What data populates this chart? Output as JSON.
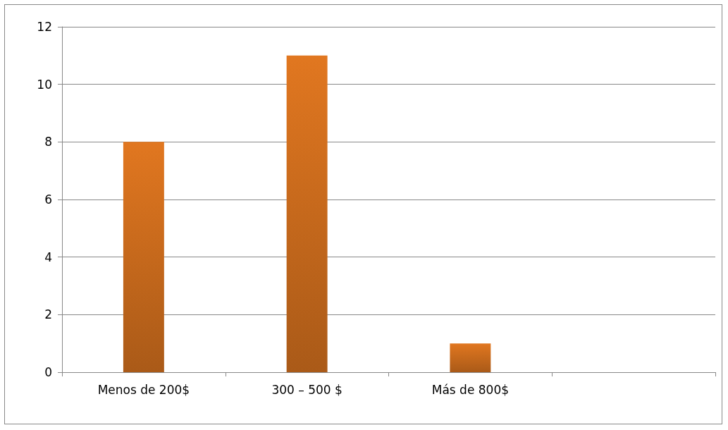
{
  "chart_data": {
    "type": "bar",
    "categories": [
      "Menos de 200$",
      "300 – 500 $",
      "Más de 800$",
      null
    ],
    "values": [
      8,
      11,
      1,
      null
    ],
    "color": "#d4701e",
    "ylim": [
      0,
      12
    ],
    "yticks": [
      0,
      2,
      4,
      6,
      8,
      10,
      12
    ],
    "grid": "y"
  }
}
